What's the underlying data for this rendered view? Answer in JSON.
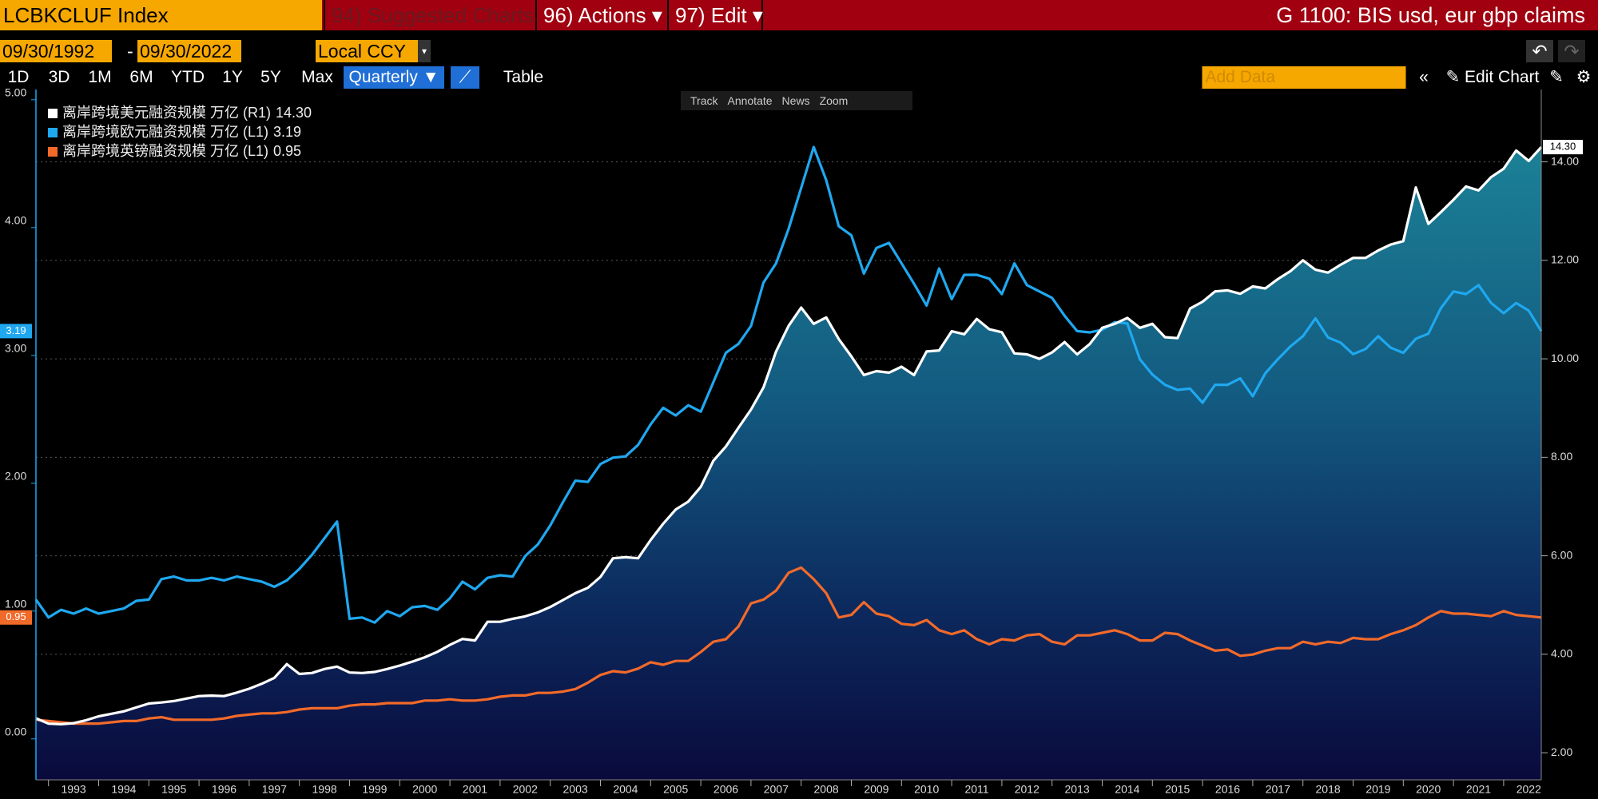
{
  "ui": {
    "ticker": "LCBKCLUF Index",
    "tabs": [
      "94) Suggested Charts",
      "96) Actions ▾",
      "97) Edit ▾"
    ],
    "title": "G 1100: BIS usd, eur gbp claims",
    "start_date": "09/30/1992",
    "date_sep": "-",
    "end_date": "09/30/2022",
    "currency": "Local CCY",
    "ranges": [
      "1D",
      "3D",
      "1M",
      "6M",
      "YTD",
      "1Y",
      "5Y",
      "Max"
    ],
    "frequency": "Quarterly ▼",
    "table": "Table",
    "add_data": "Add Data",
    "edit_chart": "Edit Chart",
    "tools": [
      "Track",
      "Annotate",
      "News",
      "Zoom"
    ]
  },
  "chart_data": {
    "type": "line",
    "x": [
      1992.75,
      1993,
      1993.25,
      1993.5,
      1993.75,
      1994,
      1994.25,
      1994.5,
      1994.75,
      1995,
      1995.25,
      1995.5,
      1995.75,
      1996,
      1996.25,
      1996.5,
      1996.75,
      1997,
      1997.25,
      1997.5,
      1997.75,
      1998,
      1998.25,
      1998.5,
      1998.75,
      1999,
      1999.25,
      1999.5,
      1999.75,
      2000,
      2000.25,
      2000.5,
      2000.75,
      2001,
      2001.25,
      2001.5,
      2001.75,
      2002,
      2002.25,
      2002.5,
      2002.75,
      2003,
      2003.25,
      2003.5,
      2003.75,
      2004,
      2004.25,
      2004.5,
      2004.75,
      2005,
      2005.25,
      2005.5,
      2005.75,
      2006,
      2006.25,
      2006.5,
      2006.75,
      2007,
      2007.25,
      2007.5,
      2007.75,
      2008,
      2008.25,
      2008.5,
      2008.75,
      2009,
      2009.25,
      2009.5,
      2009.75,
      2010,
      2010.25,
      2010.5,
      2010.75,
      2011,
      2011.25,
      2011.5,
      2011.75,
      2012,
      2012.25,
      2012.5,
      2012.75,
      2013,
      2013.25,
      2013.5,
      2013.75,
      2014,
      2014.25,
      2014.5,
      2014.75,
      2015,
      2015.25,
      2015.5,
      2015.75,
      2016,
      2016.25,
      2016.5,
      2016.75,
      2017,
      2017.25,
      2017.5,
      2017.75,
      2018,
      2018.25,
      2018.5,
      2018.75,
      2019,
      2019.25,
      2019.5,
      2019.75,
      2020,
      2020.25,
      2020.5,
      2020.75,
      2021,
      2021.25,
      2021.5,
      2021.75,
      2022,
      2022.25,
      2022.5,
      2022.75
    ],
    "xlim": [
      1992.75,
      2022.75
    ],
    "xticks": [
      {
        "value": 1993,
        "label": "1993"
      },
      {
        "value": 1994,
        "label": "1994"
      },
      {
        "value": 1995,
        "label": "1995"
      },
      {
        "value": 1996,
        "label": "1996"
      },
      {
        "value": 1997,
        "label": "1997"
      },
      {
        "value": 1998,
        "label": "1998"
      },
      {
        "value": 1999,
        "label": "1999"
      },
      {
        "value": 2000,
        "label": "2000"
      },
      {
        "value": 2001,
        "label": "2001"
      },
      {
        "value": 2002,
        "label": "2002"
      },
      {
        "value": 2003,
        "label": "2003"
      },
      {
        "value": 2004,
        "label": "2004"
      },
      {
        "value": 2005,
        "label": "2005"
      },
      {
        "value": 2006,
        "label": "2006"
      },
      {
        "value": 2007,
        "label": "2007"
      },
      {
        "value": 2008,
        "label": "2008"
      },
      {
        "value": 2009,
        "label": "2009"
      },
      {
        "value": 2010,
        "label": "2010"
      },
      {
        "value": 2011,
        "label": "2011"
      },
      {
        "value": 2012,
        "label": "2012"
      },
      {
        "value": 2013,
        "label": "2013"
      },
      {
        "value": 2014,
        "label": "2014"
      },
      {
        "value": 2015,
        "label": "2015"
      },
      {
        "value": 2016,
        "label": "2016"
      },
      {
        "value": 2017,
        "label": "2017"
      },
      {
        "value": 2018,
        "label": "2018"
      },
      {
        "value": 2019,
        "label": "2019"
      },
      {
        "value": 2020,
        "label": "2020"
      },
      {
        "value": 2021,
        "label": "2021"
      },
      {
        "value": 2022,
        "label": "2022"
      }
    ],
    "ylim": [
      -0.32,
      5.08
    ],
    "yticks": [
      {
        "value": 0,
        "label": "0.00"
      },
      {
        "value": 1,
        "label": "1.00"
      },
      {
        "value": 2,
        "label": "2.00"
      },
      {
        "value": 3,
        "label": "3.00"
      },
      {
        "value": 4,
        "label": "4.00"
      },
      {
        "value": 5,
        "label": "5.00"
      }
    ],
    "y2lim": [
      1.45,
      15.47
    ],
    "y2ticks": [
      {
        "value": 2,
        "label": "2.00"
      },
      {
        "value": 4,
        "label": "4.00"
      },
      {
        "value": 6,
        "label": "6.00"
      },
      {
        "value": 8,
        "label": "8.00"
      },
      {
        "value": 10,
        "label": "10.00"
      },
      {
        "value": 12,
        "label": "12.00"
      },
      {
        "value": 14,
        "label": "14.00"
      }
    ],
    "grid": true,
    "series": [
      {
        "name": "离岸跨境美元融资规模 万亿 (R1)",
        "last_label": "14.30",
        "color": "#ffffff",
        "axis": "y2",
        "style": "area",
        "values": [
          2.7,
          2.59,
          2.58,
          2.6,
          2.66,
          2.74,
          2.79,
          2.84,
          2.92,
          3.0,
          3.02,
          3.05,
          3.1,
          3.15,
          3.16,
          3.15,
          3.22,
          3.3,
          3.4,
          3.52,
          3.8,
          3.6,
          3.62,
          3.7,
          3.75,
          3.63,
          3.62,
          3.64,
          3.7,
          3.77,
          3.85,
          3.94,
          4.05,
          4.19,
          4.31,
          4.28,
          4.66,
          4.66,
          4.72,
          4.77,
          4.85,
          4.96,
          5.1,
          5.24,
          5.35,
          5.57,
          5.95,
          5.97,
          5.95,
          6.32,
          6.65,
          6.94,
          7.1,
          7.4,
          7.93,
          8.22,
          8.6,
          8.97,
          9.42,
          10.15,
          10.67,
          11.04,
          10.71,
          10.84,
          10.4,
          10.05,
          9.67,
          9.75,
          9.72,
          9.84,
          9.67,
          10.15,
          10.17,
          10.56,
          10.5,
          10.81,
          10.6,
          10.54,
          10.11,
          10.09,
          10.0,
          10.13,
          10.34,
          10.09,
          10.3,
          10.63,
          10.71,
          10.83,
          10.63,
          10.71,
          10.44,
          10.42,
          11.02,
          11.16,
          11.37,
          11.39,
          11.32,
          11.47,
          11.43,
          11.62,
          11.78,
          12.0,
          11.81,
          11.75,
          11.91,
          12.05,
          12.05,
          12.2,
          12.32,
          12.39,
          13.48,
          12.74,
          12.98,
          13.23,
          13.5,
          13.42,
          13.69,
          13.86,
          14.23,
          14.02,
          14.3
        ]
      },
      {
        "name": "离岸跨境欧元融资规模 万亿 (L1)",
        "last_label": "3.19",
        "color": "#1fa8f0",
        "axis": "y",
        "values": [
          1.09,
          0.95,
          1.01,
          0.98,
          1.02,
          0.98,
          1.0,
          1.02,
          1.08,
          1.09,
          1.25,
          1.27,
          1.24,
          1.24,
          1.26,
          1.24,
          1.27,
          1.25,
          1.23,
          1.19,
          1.24,
          1.33,
          1.44,
          1.57,
          1.7,
          0.94,
          0.95,
          0.91,
          1.0,
          0.96,
          1.03,
          1.04,
          1.01,
          1.1,
          1.23,
          1.17,
          1.26,
          1.28,
          1.27,
          1.43,
          1.52,
          1.67,
          1.85,
          2.02,
          2.01,
          2.15,
          2.2,
          2.21,
          2.3,
          2.46,
          2.59,
          2.53,
          2.61,
          2.56,
          2.79,
          3.02,
          3.09,
          3.23,
          3.57,
          3.72,
          3.99,
          4.31,
          4.63,
          4.37,
          4.01,
          3.94,
          3.64,
          3.84,
          3.88,
          3.72,
          3.56,
          3.39,
          3.68,
          3.44,
          3.63,
          3.63,
          3.6,
          3.48,
          3.72,
          3.55,
          3.5,
          3.45,
          3.31,
          3.19,
          3.18,
          3.2,
          3.26,
          3.25,
          2.97,
          2.85,
          2.77,
          2.73,
          2.74,
          2.63,
          2.77,
          2.77,
          2.82,
          2.68,
          2.86,
          2.97,
          3.07,
          3.15,
          3.29,
          3.14,
          3.1,
          3.01,
          3.05,
          3.15,
          3.06,
          3.02,
          3.13,
          3.17,
          3.37,
          3.5,
          3.48,
          3.55,
          3.41,
          3.33,
          3.41,
          3.35,
          3.19
        ]
      },
      {
        "name": "离岸跨境英镑融资规模 万亿 (L1)",
        "last_label": "0.95",
        "color": "#f26a2a",
        "axis": "y",
        "values": [
          0.15,
          0.14,
          0.13,
          0.12,
          0.12,
          0.12,
          0.13,
          0.14,
          0.14,
          0.16,
          0.17,
          0.15,
          0.15,
          0.15,
          0.15,
          0.16,
          0.18,
          0.19,
          0.2,
          0.2,
          0.21,
          0.23,
          0.24,
          0.24,
          0.24,
          0.26,
          0.27,
          0.27,
          0.28,
          0.28,
          0.28,
          0.3,
          0.3,
          0.31,
          0.3,
          0.3,
          0.31,
          0.33,
          0.34,
          0.34,
          0.36,
          0.36,
          0.37,
          0.39,
          0.44,
          0.5,
          0.53,
          0.52,
          0.55,
          0.6,
          0.58,
          0.61,
          0.61,
          0.68,
          0.76,
          0.78,
          0.88,
          1.06,
          1.09,
          1.16,
          1.3,
          1.34,
          1.25,
          1.14,
          0.95,
          0.97,
          1.07,
          0.98,
          0.96,
          0.9,
          0.89,
          0.93,
          0.85,
          0.82,
          0.85,
          0.78,
          0.74,
          0.78,
          0.77,
          0.81,
          0.82,
          0.76,
          0.74,
          0.81,
          0.81,
          0.83,
          0.85,
          0.82,
          0.77,
          0.77,
          0.83,
          0.82,
          0.77,
          0.73,
          0.69,
          0.7,
          0.65,
          0.66,
          0.69,
          0.71,
          0.71,
          0.76,
          0.74,
          0.76,
          0.75,
          0.79,
          0.78,
          0.78,
          0.82,
          0.85,
          0.89,
          0.95,
          1.0,
          0.98,
          0.98,
          0.97,
          0.96,
          1.0,
          0.97,
          0.96,
          0.95
        ]
      }
    ]
  }
}
